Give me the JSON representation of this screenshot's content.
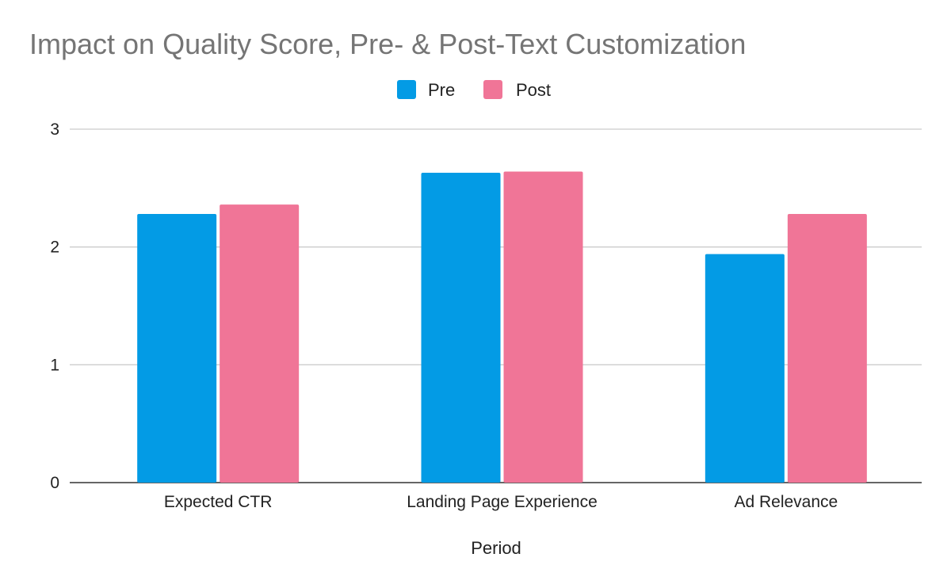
{
  "chart_data": {
    "type": "bar",
    "title": "Impact on Quality Score, Pre- & Post-Text Customization",
    "xlabel": "Period",
    "ylabel": "",
    "categories": [
      "Expected CTR",
      "Landing Page Experience",
      "Ad Relevance"
    ],
    "series": [
      {
        "name": "Pre",
        "color": "#039be5",
        "values": [
          2.28,
          2.63,
          1.94
        ]
      },
      {
        "name": "Post",
        "color": "#f07597",
        "values": [
          2.36,
          2.64,
          2.28
        ]
      }
    ],
    "ylim": [
      0,
      3
    ],
    "yticks": [
      "0",
      "1",
      "2",
      "3"
    ],
    "grid": true,
    "legend_position": "top-center"
  }
}
